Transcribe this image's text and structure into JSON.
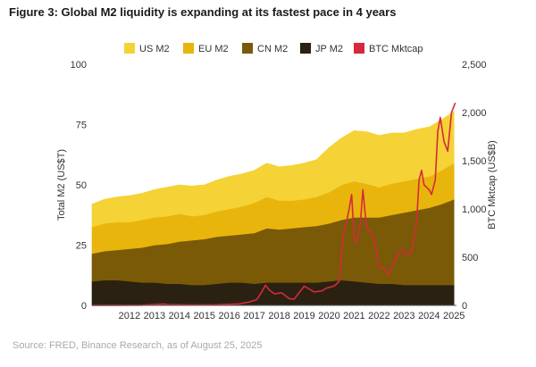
{
  "title": "Figure 3: Global M2 liquidity is expanding at its fastest pace in 4 years",
  "source": "Source: FRED, Binance Research, as of August 25, 2025",
  "chart_data": {
    "type": "area",
    "x": [
      "2011.0",
      "2011.5",
      "2012.0",
      "2012.5",
      "2013.0",
      "2013.5",
      "2014.0",
      "2014.5",
      "2015.0",
      "2015.5",
      "2016.0",
      "2016.5",
      "2017.0",
      "2017.5",
      "2018.0",
      "2018.5",
      "2019.0",
      "2019.5",
      "2020.0",
      "2020.5",
      "2021.0",
      "2021.5",
      "2022.0",
      "2022.5",
      "2023.0",
      "2023.5",
      "2024.0",
      "2024.5",
      "2025.0",
      "2025.5"
    ],
    "xlim": [
      2011.0,
      2025.6
    ],
    "xticks": [
      "2012",
      "2013",
      "2014",
      "2015",
      "2016",
      "2017",
      "2018",
      "2019",
      "2020",
      "2021",
      "2022",
      "2023",
      "2024",
      "2025"
    ],
    "ylabel": "Total M2 (US$T)",
    "ylim": [
      0,
      100
    ],
    "yticks": [
      "0",
      "25",
      "50",
      "75",
      "100"
    ],
    "y2label": "BTC Mktcap (US$B)",
    "y2lim": [
      0,
      2500
    ],
    "y2ticks": [
      "0",
      "500",
      "1,000",
      "1,500",
      "2,000",
      "2,500"
    ],
    "stacked_series": [
      {
        "name": "JP M2",
        "color": "#2b2112",
        "values": [
          10,
          10.5,
          10.5,
          10,
          9.5,
          9.5,
          9,
          9,
          8.5,
          8.5,
          9,
          9.5,
          9.5,
          9,
          9.5,
          9.5,
          9.5,
          9.5,
          9.5,
          10,
          10.5,
          10,
          9.5,
          9,
          9,
          8.5,
          8.5,
          8.5,
          8.5,
          8.5
        ]
      },
      {
        "name": "CN M2",
        "color": "#7a5a07",
        "values": [
          11.5,
          12,
          12.5,
          13.5,
          14.5,
          15.5,
          16.5,
          17.5,
          18.5,
          19,
          19.5,
          19.5,
          20,
          21,
          22.5,
          22,
          22.5,
          23,
          23.5,
          24,
          25,
          26.5,
          27,
          27.5,
          28.5,
          30,
          31,
          32,
          33.5,
          35.5
        ]
      },
      {
        "name": "EU M2",
        "color": "#e8b50c",
        "values": [
          11,
          11.5,
          11.5,
          11,
          11.5,
          11.5,
          11.5,
          11.5,
          10,
          10,
          10.5,
          11,
          11.5,
          12.5,
          13,
          12,
          11.5,
          11.5,
          12,
          13,
          14.5,
          15,
          14,
          12.5,
          13,
          13,
          13,
          13,
          14,
          15
        ]
      },
      {
        "name": "US M2",
        "color": "#f5d235",
        "values": [
          9.5,
          10,
          10.5,
          11,
          11,
          11.5,
          12,
          12,
          12.5,
          12.5,
          13,
          13.5,
          13.5,
          13.5,
          14,
          14,
          14.5,
          15,
          15.5,
          18.5,
          19.5,
          21,
          21.5,
          21.5,
          21,
          20,
          20.5,
          20.5,
          21,
          21.5
        ]
      }
    ],
    "line_series": {
      "name": "BTC Mktcap",
      "color": "#d42a3b",
      "axis": "right",
      "x": [
        2011.0,
        2013.0,
        2013.9,
        2014.0,
        2015.0,
        2016.0,
        2016.9,
        2017.3,
        2017.6,
        2017.8,
        2017.95,
        2018.1,
        2018.3,
        2018.6,
        2018.9,
        2019.1,
        2019.5,
        2019.7,
        2019.9,
        2020.2,
        2020.4,
        2020.7,
        2020.9,
        2021.0,
        2021.1,
        2021.3,
        2021.4,
        2021.5,
        2021.6,
        2021.75,
        2021.85,
        2022.0,
        2022.2,
        2022.4,
        2022.5,
        2022.7,
        2022.9,
        2023.0,
        2023.2,
        2023.4,
        2023.6,
        2023.8,
        2023.9,
        2024.0,
        2024.1,
        2024.2,
        2024.3,
        2024.5,
        2024.6,
        2024.75,
        2024.85,
        2024.95,
        2025.1,
        2025.25,
        2025.4,
        2025.55
      ],
      "values": [
        0,
        2,
        15,
        8,
        4,
        6,
        16,
        35,
        60,
        140,
        210,
        160,
        120,
        130,
        70,
        65,
        200,
        170,
        140,
        150,
        180,
        200,
        250,
        550,
        750,
        1000,
        1150,
        700,
        650,
        850,
        1200,
        800,
        750,
        550,
        400,
        380,
        320,
        400,
        500,
        580,
        520,
        550,
        700,
        850,
        1300,
        1400,
        1250,
        1200,
        1150,
        1300,
        1800,
        1950,
        1700,
        1600,
        2000,
        2100
      ]
    }
  },
  "legend": [
    {
      "label": "US M2",
      "color": "#f5d235"
    },
    {
      "label": "EU M2",
      "color": "#e8b50c"
    },
    {
      "label": "CN M2",
      "color": "#7a5a07"
    },
    {
      "label": "JP M2",
      "color": "#2b2112"
    },
    {
      "label": "BTC Mktcap",
      "color": "#d42a3b"
    }
  ]
}
